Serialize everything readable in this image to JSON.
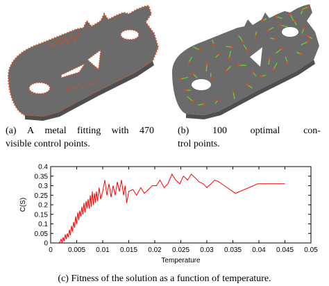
{
  "captions": {
    "a": {
      "line1_words": [
        "(a)",
        "A",
        "metal",
        "fitting",
        "with",
        "470"
      ],
      "line2": "visible control points."
    },
    "b": {
      "line1_words": [
        "(b)",
        "100",
        "optimal",
        "con-"
      ],
      "line2": "trol points."
    },
    "c": "(c) Fitness of the solution as a function of temperature."
  },
  "colors": {
    "part": "#6b6b6b",
    "control_point": "#e64a1a",
    "normal_vector": "#66cc33",
    "series": "#ff0000"
  },
  "chart_data": {
    "type": "line",
    "title": "",
    "xlabel": "Temperature",
    "ylabel": "C(S)",
    "xlim": [
      0,
      0.05
    ],
    "ylim": [
      0,
      0.4
    ],
    "xticks": [
      0,
      0.005,
      0.01,
      0.015,
      0.02,
      0.025,
      0.03,
      0.035,
      0.04,
      0.045,
      0.05
    ],
    "yticks": [
      0,
      0.05,
      0.1,
      0.15,
      0.2,
      0.25,
      0.3,
      0.35,
      0.4
    ],
    "grid": false,
    "legend": "none",
    "series": [
      {
        "x": [
          0.0015,
          0.0018,
          0.002,
          0.0022,
          0.0024,
          0.0026,
          0.0028,
          0.003,
          0.0032,
          0.0034,
          0.0036,
          0.0038,
          0.004,
          0.0042,
          0.0044,
          0.0046,
          0.0048,
          0.005,
          0.0052,
          0.0054,
          0.0056,
          0.0058,
          0.006,
          0.0062,
          0.0064,
          0.0066,
          0.0068,
          0.007,
          0.0072,
          0.0074,
          0.0076,
          0.0078,
          0.008,
          0.0082,
          0.0084,
          0.0086,
          0.0088,
          0.009,
          0.0093,
          0.0096,
          0.01,
          0.0104,
          0.0108,
          0.0112,
          0.0116,
          0.012,
          0.0124,
          0.0128,
          0.0132,
          0.0136,
          0.014,
          0.0143,
          0.0146,
          0.015,
          0.0158,
          0.0165,
          0.0173,
          0.018,
          0.0188,
          0.0195,
          0.0203,
          0.021,
          0.0218,
          0.0225,
          0.0233,
          0.024,
          0.0248,
          0.0255,
          0.0263,
          0.027,
          0.0278,
          0.0285,
          0.0293,
          0.03,
          0.0308,
          0.0315,
          0.0323,
          0.0355,
          0.0398,
          0.045
        ],
        "y": [
          0.0,
          0.005,
          0.02,
          0.0,
          0.03,
          0.01,
          0.045,
          0.02,
          0.05,
          0.03,
          0.07,
          0.04,
          0.09,
          0.06,
          0.11,
          0.08,
          0.14,
          0.1,
          0.16,
          0.12,
          0.17,
          0.14,
          0.19,
          0.15,
          0.21,
          0.16,
          0.22,
          0.18,
          0.23,
          0.18,
          0.25,
          0.19,
          0.27,
          0.2,
          0.26,
          0.21,
          0.27,
          0.22,
          0.29,
          0.23,
          0.27,
          0.33,
          0.25,
          0.31,
          0.24,
          0.3,
          0.25,
          0.32,
          0.27,
          0.33,
          0.25,
          0.3,
          0.21,
          0.27,
          0.28,
          0.25,
          0.29,
          0.26,
          0.28,
          0.3,
          0.3,
          0.33,
          0.29,
          0.31,
          0.36,
          0.33,
          0.31,
          0.35,
          0.33,
          0.36,
          0.34,
          0.32,
          0.31,
          0.29,
          0.31,
          0.33,
          0.32,
          0.26,
          0.31,
          0.31
        ]
      }
    ]
  }
}
